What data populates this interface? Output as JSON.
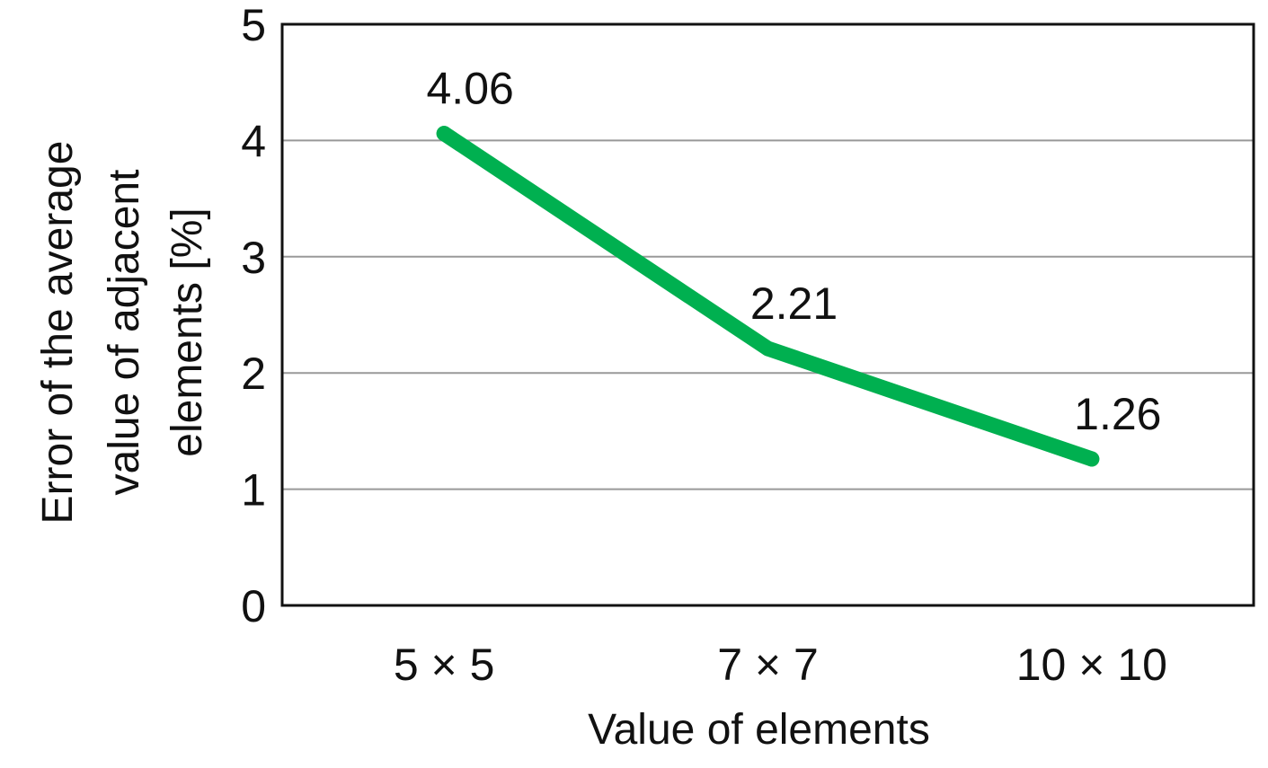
{
  "chart_data": {
    "type": "line",
    "categories": [
      "5 × 5",
      "7 × 7",
      "10 × 10"
    ],
    "series": [
      {
        "values": [
          4.06,
          2.21,
          1.26
        ],
        "color": "#00b050"
      }
    ],
    "data_labels": [
      "4.06",
      "2.21",
      "1.26"
    ],
    "xlabel": "Value of elements",
    "ylabel_lines": [
      "Error of the average",
      "value of adjacent",
      "elements [%]"
    ],
    "ylim": [
      0,
      5
    ],
    "yticks": [
      0,
      1,
      2,
      3,
      4,
      5
    ],
    "ytick_labels": [
      "0",
      "1",
      "2",
      "3",
      "4",
      "5"
    ],
    "grid": true,
    "legend": "none"
  }
}
